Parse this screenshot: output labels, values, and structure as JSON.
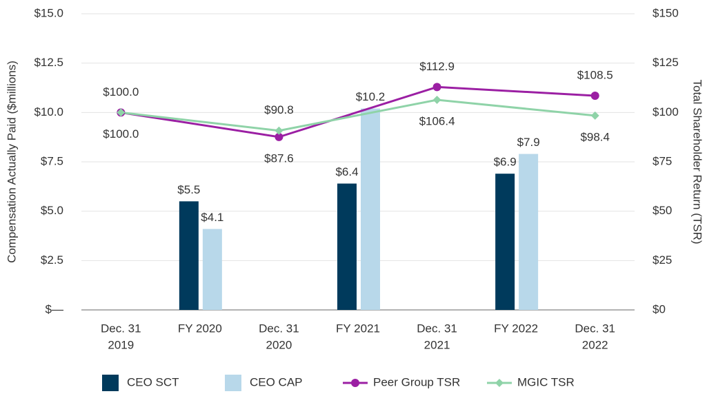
{
  "chart_data": [
    {
      "type": "bar",
      "categories": [
        [
          "FY 2020"
        ],
        [
          "FY 2021"
        ],
        [
          "FY 2022"
        ]
      ],
      "series": [
        {
          "name": "CEO SCT",
          "color": "#003a5c",
          "values": [
            5.5,
            6.4,
            6.9
          ],
          "value_labels": [
            "$5.5",
            "$6.4",
            "$6.9"
          ]
        },
        {
          "name": "CEO CAP",
          "color": "#b8d8ea",
          "values": [
            4.1,
            10.2,
            7.9
          ],
          "value_labels": [
            "$4.1",
            "$10.2",
            "$7.9"
          ]
        }
      ],
      "ylabel": "Compensation Actually Paid ($millions)",
      "ylim": [
        0,
        15
      ],
      "yticks": [
        {
          "value": 0,
          "label": "$—"
        },
        {
          "value": 2.5,
          "label": "$2.5"
        },
        {
          "value": 5,
          "label": "$5.0"
        },
        {
          "value": 7.5,
          "label": "$7.5"
        },
        {
          "value": 10,
          "label": "$10.0"
        },
        {
          "value": 12.5,
          "label": "$12.5"
        },
        {
          "value": 15,
          "label": "$15.0"
        }
      ],
      "grid": true
    },
    {
      "type": "line",
      "categories": [
        [
          "Dec. 31",
          "2019"
        ],
        [
          "Dec. 31",
          "2020"
        ],
        [
          "Dec. 31",
          "2021"
        ],
        [
          "Dec. 31",
          "2022"
        ]
      ],
      "series": [
        {
          "name": "Peer Group TSR",
          "color": "#9b1fa3",
          "axis": "y2",
          "marker": "circle",
          "values": [
            100,
            87.6,
            112.9,
            108.5
          ],
          "value_labels": [
            "$100.0",
            "$87.6",
            "$112.9",
            "$108.5"
          ]
        },
        {
          "name": "MGIC TSR",
          "color": "#8fd3a8",
          "axis": "y2",
          "marker": "diamond",
          "values": [
            100,
            90.8,
            106.4,
            98.4
          ],
          "value_labels": [
            "$100.0",
            "$90.8",
            "$106.4",
            "$98.4"
          ]
        }
      ],
      "y2label": "Total Shareholder Return (TSR)",
      "y2lim": [
        0,
        150
      ],
      "y2ticks": [
        {
          "value": 0,
          "label": "$0"
        },
        {
          "value": 25,
          "label": "$25"
        },
        {
          "value": 50,
          "label": "$50"
        },
        {
          "value": 75,
          "label": "$75"
        },
        {
          "value": 100,
          "label": "$100"
        },
        {
          "value": 125,
          "label": "$125"
        },
        {
          "value": 150,
          "label": "$150"
        }
      ]
    }
  ]
}
